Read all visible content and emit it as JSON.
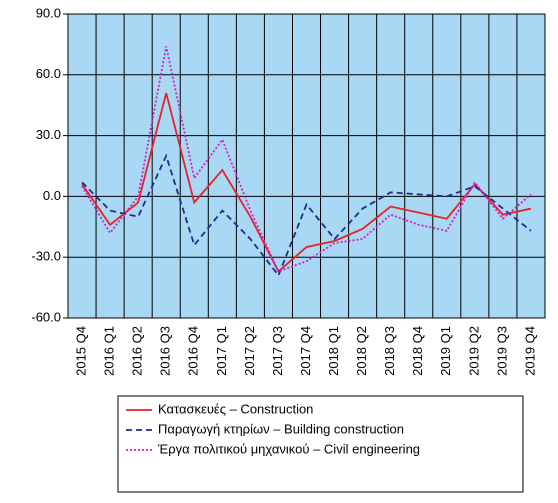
{
  "chart_data": {
    "type": "line",
    "categories": [
      "2015 Q4",
      "2016 Q1",
      "2016 Q2",
      "2016 Q3",
      "2016 Q4",
      "2017 Q1",
      "2017 Q2",
      "2017 Q3",
      "2017 Q4",
      "2018 Q1",
      "2018 Q2",
      "2018 Q3",
      "2018 Q4",
      "2019 Q1",
      "2019 Q2",
      "2019 Q3",
      "2019 Q4"
    ],
    "series": [
      {
        "name": "Κατασκευές – Construction",
        "color": "#e8202a",
        "line_style": "solid",
        "values": [
          6,
          -14,
          -3,
          51,
          -3,
          13,
          -10,
          -37,
          -25,
          -22,
          -16,
          -5,
          -8,
          -11,
          6,
          -9,
          -6
        ]
      },
      {
        "name": "Παραγωγή κτηρίων – Building construction",
        "color": "#1f2d8a",
        "line_style": "dashed",
        "values": [
          7,
          -7,
          -10,
          20,
          -24,
          -7,
          -21,
          -39,
          -4,
          -21,
          -6,
          2,
          1,
          0,
          5,
          -6,
          -17
        ]
      },
      {
        "name": "Έργα πολιτικού μηχανικού – Civil engineering",
        "color": "#d21fc0",
        "line_style": "dotted",
        "values": [
          5,
          -18,
          0,
          74,
          9,
          28,
          -7,
          -37,
          -32,
          -23,
          -21,
          -9,
          -14,
          -17,
          7,
          -11,
          1
        ]
      }
    ],
    "ylim": [
      -60,
      90
    ],
    "yticks": [
      {
        "value": -60,
        "label": "-60.0"
      },
      {
        "value": -30,
        "label": "-30.0"
      },
      {
        "value": 0,
        "label": "0.0"
      },
      {
        "value": 30,
        "label": "30.0"
      },
      {
        "value": 60,
        "label": "60.0"
      },
      {
        "value": 90,
        "label": "90.0"
      }
    ],
    "grid": true,
    "background": "#a8d8f4"
  }
}
